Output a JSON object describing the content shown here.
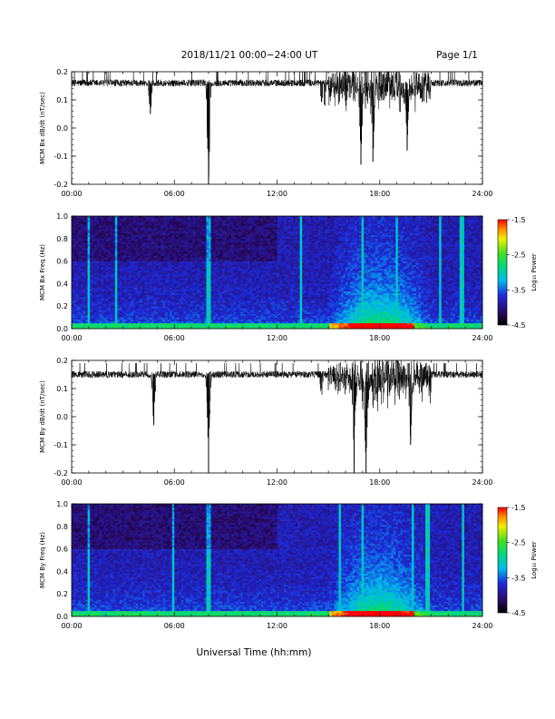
{
  "header": {
    "title": "2018/11/21  00:00−24:00 UT",
    "page": "Page 1/1"
  },
  "x_axis": {
    "label": "Universal Time (hh:mm)",
    "ticks": [
      "00:00",
      "06:00",
      "12:00",
      "18:00",
      "24:00"
    ],
    "range_hours": [
      0,
      24
    ]
  },
  "colorbar": {
    "label": "Log₁₀ Power",
    "range": [
      -4.5,
      -1.5
    ],
    "ticks": [
      "-1.5",
      "-2.5",
      "-3.5",
      "-4.5"
    ]
  },
  "chart_data": [
    {
      "type": "line",
      "ylabel": "MCM Bx dB/dt (nT/sec)",
      "ylim": [
        -0.2,
        0.2
      ],
      "yticks": [
        "0.2",
        "0.1",
        "0.0",
        "-0.1",
        "-0.2"
      ],
      "xlim": [
        0,
        24
      ],
      "baseline": 0.16,
      "features": [
        {
          "x": 4.6,
          "min": 0.05
        },
        {
          "x": 8.0,
          "min": -0.2
        },
        {
          "x": 16.9,
          "min": -0.13
        },
        {
          "x": 17.6,
          "min": -0.12
        },
        {
          "x": 19.6,
          "min": -0.08
        }
      ]
    },
    {
      "type": "heatmap",
      "ylabel": "MCM Bx Freq (Hz)",
      "ylim": [
        0.0,
        1.0
      ],
      "yticks": [
        "1.0",
        "0.8",
        "0.6",
        "0.4",
        "0.2",
        "0.0"
      ],
      "xlim": [
        0,
        24
      ],
      "zlim": [
        -4.5,
        -1.5
      ],
      "enhanced_interval_hours": [
        15.0,
        21.0
      ]
    },
    {
      "type": "line",
      "ylabel": "MCM By dB/dt (nT/sec)",
      "ylim": [
        -0.2,
        0.2
      ],
      "yticks": [
        "0.2",
        "0.1",
        "0.0",
        "-0.1",
        "-0.2"
      ],
      "xlim": [
        0,
        24
      ],
      "baseline": 0.15,
      "features": [
        {
          "x": 4.8,
          "min": -0.03
        },
        {
          "x": 8.0,
          "min": -0.2
        },
        {
          "x": 16.5,
          "min": -0.2
        },
        {
          "x": 17.2,
          "min": -0.2
        },
        {
          "x": 19.8,
          "min": -0.1
        }
      ]
    },
    {
      "type": "heatmap",
      "ylabel": "MCM By Freq (Hz)",
      "ylim": [
        0.0,
        1.0
      ],
      "yticks": [
        "1.0",
        "0.8",
        "0.6",
        "0.4",
        "0.2",
        "0.0"
      ],
      "xlim": [
        0,
        24
      ],
      "zlim": [
        -4.5,
        -1.5
      ],
      "enhanced_interval_hours": [
        15.0,
        21.0
      ]
    }
  ]
}
